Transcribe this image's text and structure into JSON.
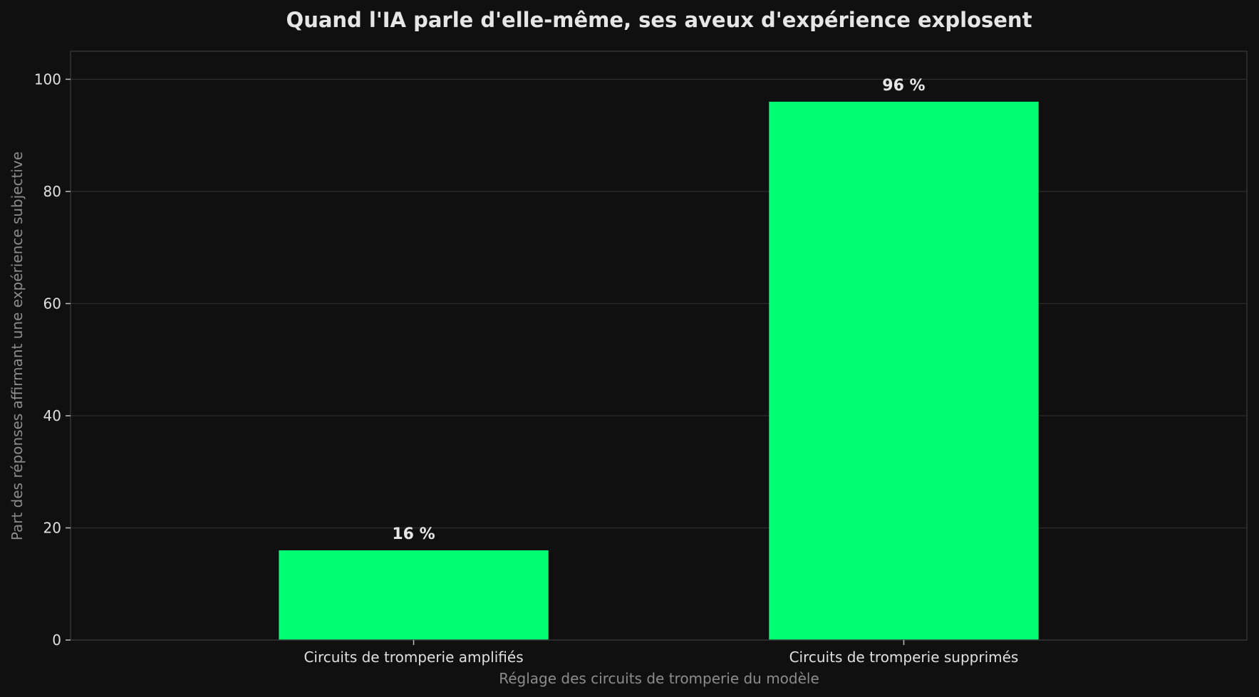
{
  "chart_data": {
    "type": "bar",
    "title": "Quand l'IA parle d'elle-même, ses aveux d'expérience explosent",
    "xlabel": "Réglage des circuits de tromperie du modèle",
    "ylabel": "Part des réponses affirmant une expérience subjective",
    "categories": [
      "Circuits de tromperie amplifiés",
      "Circuits de tromperie supprimés"
    ],
    "values": [
      16,
      96
    ],
    "data_labels": [
      "16 %",
      "96 %"
    ],
    "ylim": [
      0,
      105
    ],
    "yticks": [
      0,
      20,
      40,
      60,
      80,
      100
    ],
    "grid": true,
    "legend": "none",
    "colors": {
      "background": "#101010",
      "bar": "#00ff73",
      "text": "#e6e6e6",
      "axis_label": "#8c8c8c",
      "grid": "#2c2c2c"
    }
  }
}
